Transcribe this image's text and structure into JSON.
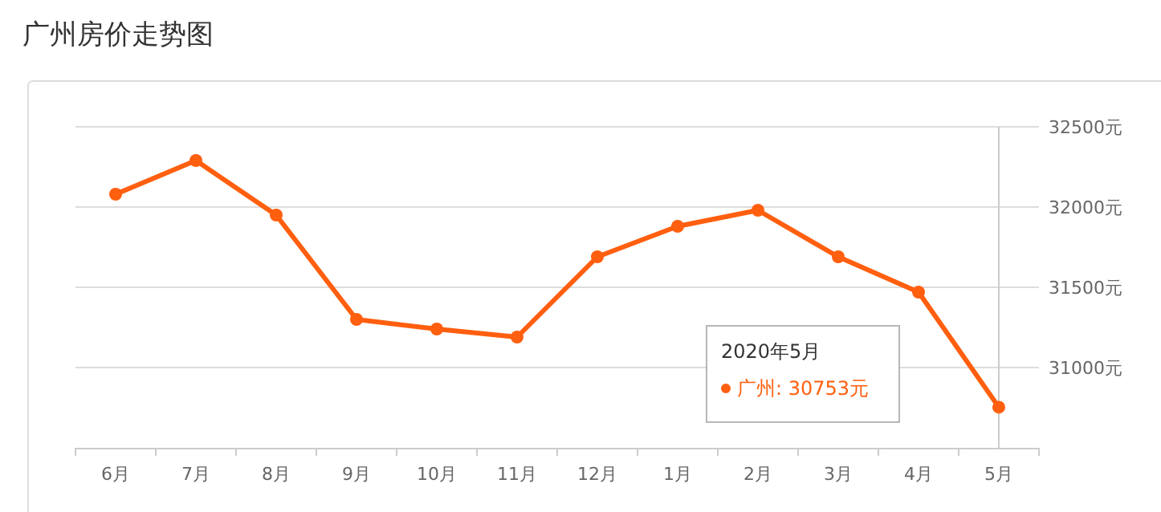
{
  "chart_data": {
    "type": "line",
    "title": "广州房价走势图",
    "categories": [
      "6月",
      "7月",
      "8月",
      "9月",
      "10月",
      "11月",
      "12月",
      "1月",
      "2月",
      "3月",
      "4月",
      "5月"
    ],
    "series": [
      {
        "name": "广州",
        "color": "#ff5f0f",
        "values": [
          32080,
          32290,
          31950,
          31300,
          31240,
          31190,
          31690,
          31880,
          31980,
          31690,
          31470,
          30753
        ]
      }
    ],
    "ylim": [
      30500,
      32500
    ],
    "yticks": [
      {
        "value": 31000,
        "label": "31000元"
      },
      {
        "value": 31500,
        "label": "31500元"
      },
      {
        "value": 32000,
        "label": "32000元"
      },
      {
        "value": 32500,
        "label": "32500元"
      }
    ],
    "grid": "y",
    "marker": "circle",
    "line_style": "solid",
    "legend": false,
    "ref_lines": [
      {
        "axis": "x",
        "value": "5月",
        "color": "#cccccc"
      }
    ],
    "annotations": [
      "2020年5月",
      ":  30753元"
    ]
  }
}
